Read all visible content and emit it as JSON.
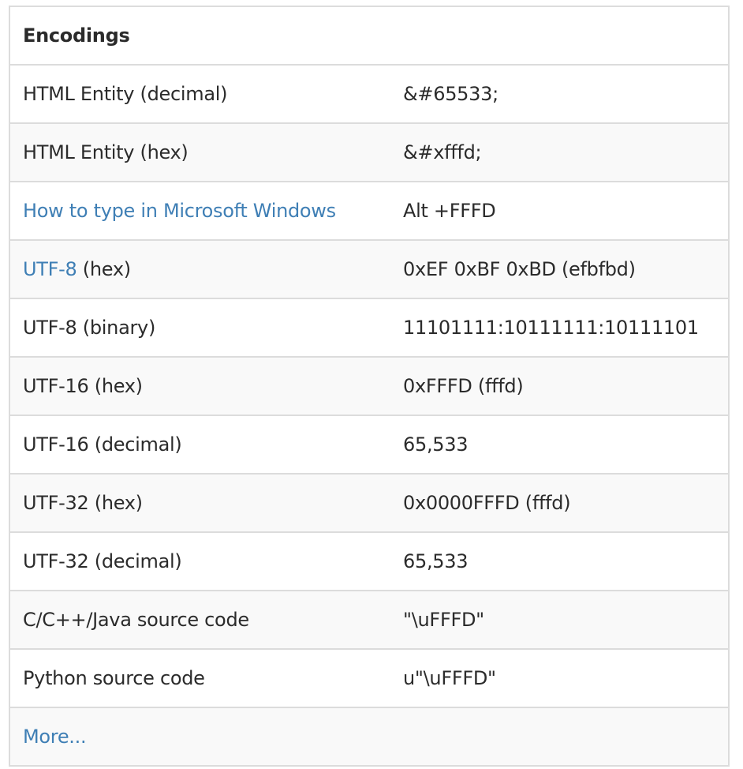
{
  "title": "Encodings",
  "link_color": "#3f7fb5",
  "rows": [
    {
      "label": "HTML Entity (decimal)",
      "value": "&#65533;"
    },
    {
      "label": "HTML Entity (hex)",
      "value": "&#xfffd;"
    },
    {
      "link": "How to type in Microsoft Windows",
      "label": "",
      "value": "Alt +FFFD"
    },
    {
      "link": "UTF-8",
      "label": " (hex)",
      "value": "0xEF 0xBF 0xBD (efbfbd)"
    },
    {
      "label": "UTF-8 (binary)",
      "value": "11101111:10111111:10111101"
    },
    {
      "label": "UTF-16 (hex)",
      "value": "0xFFFD (fffd)"
    },
    {
      "label": "UTF-16 (decimal)",
      "value": "65,533"
    },
    {
      "label": "UTF-32 (hex)",
      "value": "0x0000FFFD (fffd)"
    },
    {
      "label": "UTF-32 (decimal)",
      "value": "65,533"
    },
    {
      "label": "C/C++/Java source code",
      "value": "\"\\uFFFD\""
    },
    {
      "label": "Python source code",
      "value": "u\"\\uFFFD\""
    }
  ],
  "more_link": "More..."
}
